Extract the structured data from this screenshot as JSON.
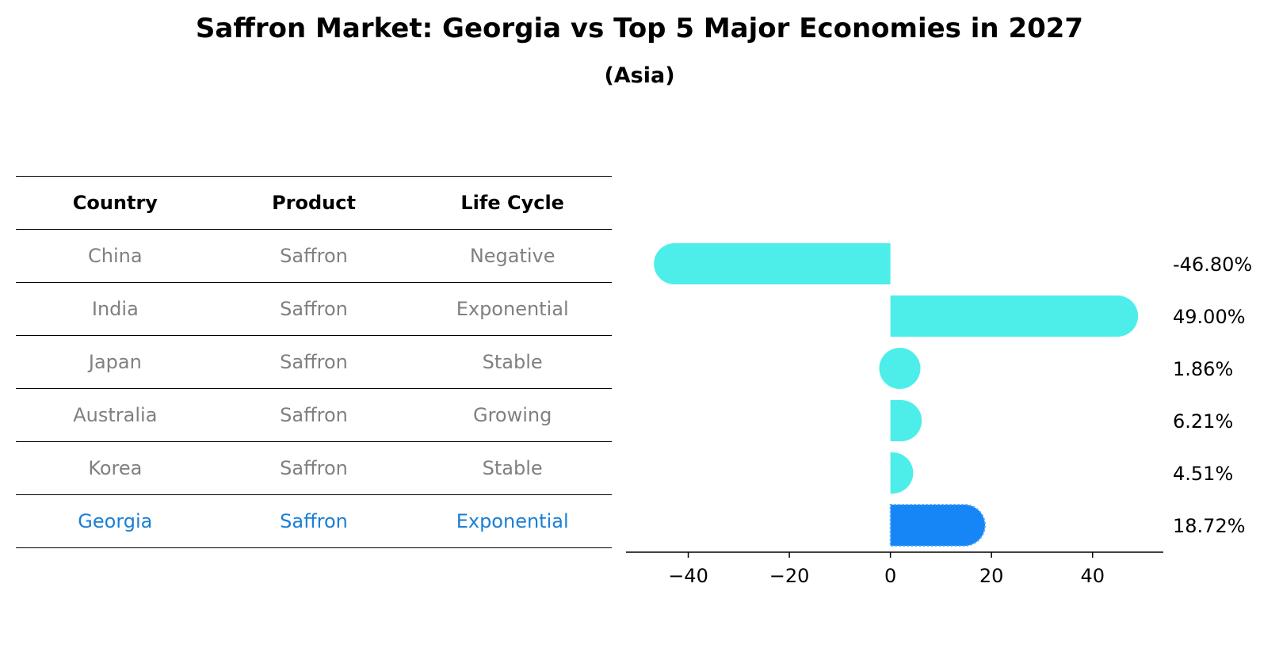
{
  "title": "Saffron Market: Georgia vs Top 5 Major Economies in 2027",
  "subtitle": "(Asia)",
  "table": {
    "headers": [
      "Country",
      "Product",
      "Life Cycle"
    ],
    "rows": [
      [
        "China",
        "Saffron",
        "Negative"
      ],
      [
        "India",
        "Saffron",
        "Exponential"
      ],
      [
        "Japan",
        "Saffron",
        "Stable"
      ],
      [
        "Australia",
        "Saffron",
        "Growing"
      ],
      [
        "Korea",
        "Saffron",
        "Stable"
      ],
      [
        "Georgia",
        "Saffron",
        "Exponential"
      ]
    ],
    "highlight_row": 5
  },
  "colors": {
    "bar": "#4deeea",
    "highlight_bar": "#1685f5",
    "highlight_text": "#1a7fd4",
    "muted_text": "#808080"
  },
  "chart_data": {
    "type": "bar",
    "orientation": "horizontal",
    "categories": [
      "China",
      "India",
      "Japan",
      "Australia",
      "Korea",
      "Georgia"
    ],
    "values": [
      -46.8,
      49.0,
      1.86,
      6.21,
      4.51,
      18.72
    ],
    "value_labels": [
      "-46.80%",
      "49.00%",
      "1.86%",
      "6.21%",
      "4.51%",
      "18.72%"
    ],
    "xlim": [
      -52,
      54
    ],
    "xticks": [
      -40,
      -20,
      0,
      20,
      40
    ],
    "xtick_labels": [
      "−40",
      "−20",
      "0",
      "20",
      "40"
    ],
    "highlight_index": 5,
    "grid": false
  }
}
